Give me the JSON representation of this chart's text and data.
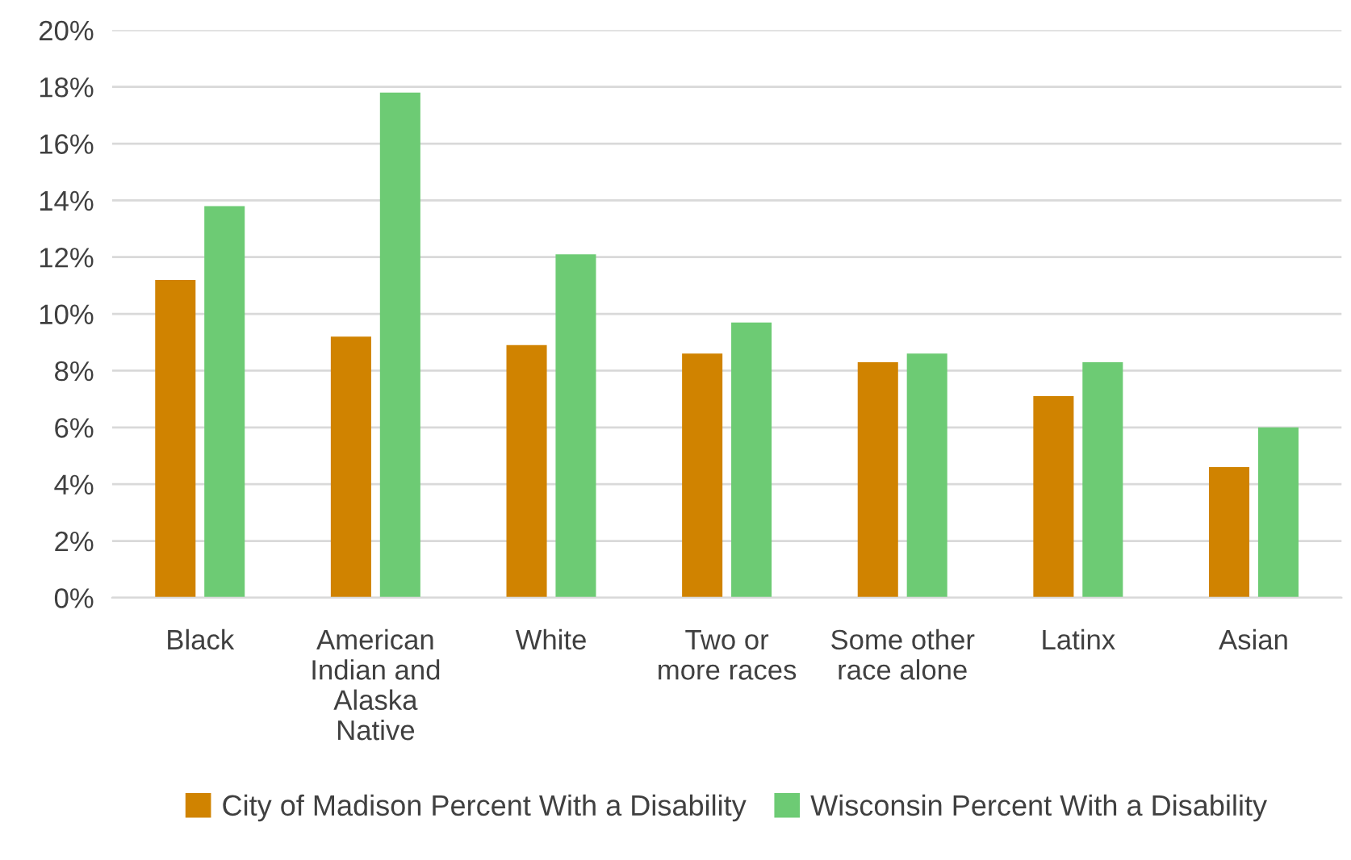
{
  "chart_data": {
    "type": "bar",
    "categories": [
      "Black",
      "American\nIndian and\nAlaska\nNative",
      "White",
      "Two or\nmore races",
      "Some other\nrace alone",
      "Latinx",
      "Asian"
    ],
    "series": [
      {
        "name": "City of Madison Percent With a Disability",
        "color": "#d08300",
        "values": [
          11.2,
          9.2,
          8.9,
          8.6,
          8.3,
          7.1,
          4.6
        ]
      },
      {
        "name": "Wisconsin Percent With a Disability",
        "color": "#6dcb74",
        "values": [
          13.8,
          17.8,
          12.1,
          9.7,
          8.6,
          8.3,
          6.0
        ]
      }
    ],
    "ylim": [
      0,
      20
    ],
    "yticks": [
      {
        "value": 0,
        "label": "0%"
      },
      {
        "value": 2,
        "label": "2%"
      },
      {
        "value": 4,
        "label": "4%"
      },
      {
        "value": 6,
        "label": "6%"
      },
      {
        "value": 8,
        "label": "8%"
      },
      {
        "value": 10,
        "label": "10%"
      },
      {
        "value": 12,
        "label": "12%"
      },
      {
        "value": 14,
        "label": "14%"
      },
      {
        "value": 16,
        "label": "16%"
      },
      {
        "value": 18,
        "label": "18%"
      },
      {
        "value": 20,
        "label": "20%"
      }
    ],
    "grid": "y",
    "legend": "bottom"
  }
}
